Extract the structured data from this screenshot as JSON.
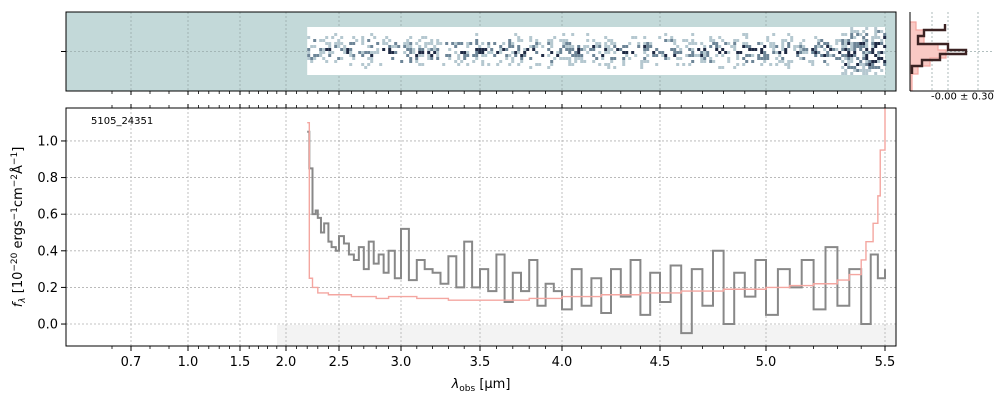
{
  "chart_data": [
    {
      "type": "heatmap",
      "panel": "2D spectrum",
      "x_range": [
        0.55,
        5.55
      ],
      "y_range": [
        -1,
        1
      ],
      "background_color": "#c3d9d9",
      "trace_start_x": 2.2,
      "trace_end_x": 5.5,
      "colormap": [
        "#ffffff",
        "#8fa9b7",
        "#1f2a44"
      ],
      "grid": true
    },
    {
      "type": "line",
      "panel": "spatial profile",
      "annotation": "-0.00 ± 0.30",
      "profile_peaks": [
        {
          "y": 0.28,
          "value": 0.55
        },
        {
          "y": 0.05,
          "value": 0.75
        },
        {
          "y": -0.15,
          "value": 0.45
        }
      ],
      "colors": {
        "data": "#3b2222",
        "model": "#f4a6a0"
      }
    },
    {
      "type": "line",
      "panel": "1D spectrum",
      "annotation": "5105_24351",
      "xlabel": "λ_obs [μm]",
      "ylabel": "f_λ [10^-20 ergs^-1cm^-2Å^-1]",
      "x_ticks": [
        0.7,
        1.0,
        1.5,
        2.0,
        2.5,
        3.0,
        3.5,
        4.0,
        4.5,
        5.0,
        5.5
      ],
      "y_ticks": [
        0.0,
        0.2,
        0.4,
        0.6,
        0.8,
        1.0
      ],
      "xlim": [
        0.6,
        5.53
      ],
      "ylim": [
        -0.12,
        1.18
      ],
      "grid": true,
      "series": [
        {
          "color": "#888888",
          "x": [
            2.2,
            2.22,
            2.25,
            2.28,
            2.3,
            2.33,
            2.36,
            2.4,
            2.43,
            2.47,
            2.5,
            2.54,
            2.58,
            2.62,
            2.66,
            2.7,
            2.74,
            2.78,
            2.82,
            2.86,
            2.9,
            2.95,
            3.0,
            3.05,
            3.1,
            3.15,
            3.2,
            3.25,
            3.3,
            3.35,
            3.4,
            3.45,
            3.5,
            3.55,
            3.6,
            3.65,
            3.7,
            3.75,
            3.8,
            3.85,
            3.9,
            3.95,
            4.0,
            4.05,
            4.1,
            4.15,
            4.2,
            4.25,
            4.3,
            4.35,
            4.4,
            4.45,
            4.5,
            4.55,
            4.6,
            4.65,
            4.7,
            4.75,
            4.8,
            4.85,
            4.9,
            4.95,
            5.0,
            5.05,
            5.1,
            5.15,
            5.2,
            5.25,
            5.3,
            5.35,
            5.4,
            5.44,
            5.47,
            5.5
          ],
          "y": [
            1.05,
            0.85,
            0.6,
            0.62,
            0.58,
            0.5,
            0.55,
            0.45,
            0.42,
            0.4,
            0.48,
            0.44,
            0.38,
            0.35,
            0.42,
            0.3,
            0.45,
            0.33,
            0.38,
            0.28,
            0.4,
            0.25,
            0.52,
            0.24,
            0.35,
            0.3,
            0.28,
            0.22,
            0.37,
            0.2,
            0.45,
            0.2,
            0.3,
            0.18,
            0.38,
            0.12,
            0.28,
            0.18,
            0.35,
            0.1,
            0.22,
            0.18,
            0.08,
            0.3,
            0.1,
            0.25,
            0.06,
            0.3,
            0.15,
            0.35,
            0.05,
            0.28,
            0.12,
            0.32,
            -0.05,
            0.3,
            0.1,
            0.4,
            0.0,
            0.28,
            0.15,
            0.35,
            0.05,
            0.3,
            0.2,
            0.35,
            0.08,
            0.42,
            0.1,
            0.3,
            0.0,
            0.38,
            0.25,
            0.3
          ]
        },
        {
          "color": "#f4a6a0",
          "x": [
            2.2,
            2.22,
            2.25,
            2.3,
            2.4,
            2.5,
            2.6,
            2.7,
            2.8,
            2.9,
            3.0,
            3.1,
            3.2,
            3.3,
            3.4,
            3.5,
            3.6,
            3.7,
            3.8,
            3.9,
            4.0,
            4.1,
            4.2,
            4.3,
            4.4,
            4.5,
            4.6,
            4.7,
            4.8,
            4.9,
            5.0,
            5.1,
            5.2,
            5.3,
            5.35,
            5.4,
            5.42,
            5.45,
            5.47,
            5.48,
            5.5
          ],
          "y": [
            1.1,
            0.25,
            0.2,
            0.17,
            0.16,
            0.16,
            0.15,
            0.15,
            0.14,
            0.15,
            0.15,
            0.14,
            0.14,
            0.13,
            0.13,
            0.13,
            0.13,
            0.13,
            0.14,
            0.14,
            0.15,
            0.15,
            0.16,
            0.16,
            0.17,
            0.17,
            0.18,
            0.18,
            0.19,
            0.19,
            0.2,
            0.21,
            0.22,
            0.24,
            0.27,
            0.35,
            0.45,
            0.55,
            0.7,
            0.95,
            1.18
          ]
        }
      ]
    }
  ]
}
